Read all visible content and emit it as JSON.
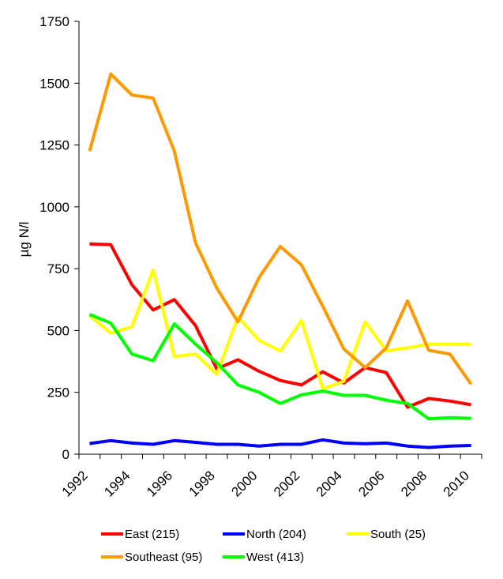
{
  "chart_data": {
    "type": "line",
    "title": "",
    "xlabel": "",
    "ylabel": "µg N/l",
    "ylim": [
      0,
      1750
    ],
    "yticks": [
      0,
      250,
      500,
      750,
      1000,
      1250,
      1500,
      1750
    ],
    "xlim": [
      1992,
      2011
    ],
    "xticks": [
      1992,
      1994,
      1996,
      1998,
      2000,
      2002,
      2004,
      2006,
      2008,
      2010
    ],
    "x": [
      1992.5,
      1993.5,
      1994.5,
      1995.5,
      1996.5,
      1997.5,
      1998.5,
      1999.5,
      2000.5,
      2001.5,
      2002.5,
      2003.5,
      2004.5,
      2005.5,
      2006.5,
      2007.5,
      2008.5,
      2009.5,
      2010.5
    ],
    "grid": false,
    "legend_position": "bottom",
    "series": [
      {
        "name": "East (215)",
        "color": "#ff0000",
        "values": [
          850,
          847,
          685,
          583,
          625,
          520,
          345,
          382,
          335,
          298,
          280,
          333,
          288,
          350,
          330,
          190,
          225,
          215,
          200
        ]
      },
      {
        "name": "North (204)",
        "color": "#0000ff",
        "values": [
          43,
          55,
          45,
          40,
          55,
          48,
          40,
          40,
          33,
          40,
          40,
          58,
          45,
          42,
          45,
          33,
          27,
          33,
          35
        ]
      },
      {
        "name": "South (25)",
        "color": "#ffff00",
        "values": [
          560,
          490,
          515,
          745,
          395,
          405,
          323,
          555,
          460,
          417,
          540,
          265,
          295,
          535,
          418,
          430,
          445,
          445,
          445
        ]
      },
      {
        "name": "Southeast (95)",
        "color": "#ff9900",
        "values": [
          1225,
          1537,
          1452,
          1440,
          1225,
          855,
          672,
          535,
          715,
          840,
          765,
          598,
          425,
          350,
          430,
          620,
          420,
          405,
          283
        ]
      },
      {
        "name": "West (413)",
        "color": "#00ff00",
        "values": [
          565,
          530,
          405,
          378,
          527,
          445,
          370,
          280,
          250,
          205,
          240,
          255,
          238,
          238,
          218,
          205,
          143,
          148,
          145
        ]
      }
    ]
  }
}
